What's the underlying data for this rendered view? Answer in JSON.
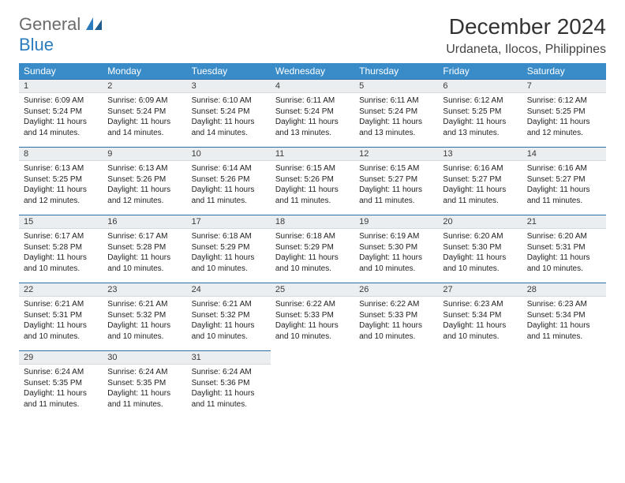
{
  "logo": {
    "word1": "General",
    "word2": "Blue"
  },
  "title": "December 2024",
  "subtitle": "Urdaneta, Ilocos, Philippines",
  "colors": {
    "header_bg": "#3a8cc9",
    "header_fg": "#ffffff",
    "daynum_bg": "#ebeef0",
    "daynum_border_top": "#2a6fa5",
    "logo_gray": "#6b6b6b",
    "logo_blue": "#2b7bbf",
    "page_bg": "#ffffff"
  },
  "weekdays": [
    "Sunday",
    "Monday",
    "Tuesday",
    "Wednesday",
    "Thursday",
    "Friday",
    "Saturday"
  ],
  "grid": {
    "rows": 5,
    "cols": 7
  },
  "days": [
    {
      "n": 1,
      "sunrise": "6:09 AM",
      "sunset": "5:24 PM",
      "daylight": "11 hours and 14 minutes."
    },
    {
      "n": 2,
      "sunrise": "6:09 AM",
      "sunset": "5:24 PM",
      "daylight": "11 hours and 14 minutes."
    },
    {
      "n": 3,
      "sunrise": "6:10 AM",
      "sunset": "5:24 PM",
      "daylight": "11 hours and 14 minutes."
    },
    {
      "n": 4,
      "sunrise": "6:11 AM",
      "sunset": "5:24 PM",
      "daylight": "11 hours and 13 minutes."
    },
    {
      "n": 5,
      "sunrise": "6:11 AM",
      "sunset": "5:24 PM",
      "daylight": "11 hours and 13 minutes."
    },
    {
      "n": 6,
      "sunrise": "6:12 AM",
      "sunset": "5:25 PM",
      "daylight": "11 hours and 13 minutes."
    },
    {
      "n": 7,
      "sunrise": "6:12 AM",
      "sunset": "5:25 PM",
      "daylight": "11 hours and 12 minutes."
    },
    {
      "n": 8,
      "sunrise": "6:13 AM",
      "sunset": "5:25 PM",
      "daylight": "11 hours and 12 minutes."
    },
    {
      "n": 9,
      "sunrise": "6:13 AM",
      "sunset": "5:26 PM",
      "daylight": "11 hours and 12 minutes."
    },
    {
      "n": 10,
      "sunrise": "6:14 AM",
      "sunset": "5:26 PM",
      "daylight": "11 hours and 11 minutes."
    },
    {
      "n": 11,
      "sunrise": "6:15 AM",
      "sunset": "5:26 PM",
      "daylight": "11 hours and 11 minutes."
    },
    {
      "n": 12,
      "sunrise": "6:15 AM",
      "sunset": "5:27 PM",
      "daylight": "11 hours and 11 minutes."
    },
    {
      "n": 13,
      "sunrise": "6:16 AM",
      "sunset": "5:27 PM",
      "daylight": "11 hours and 11 minutes."
    },
    {
      "n": 14,
      "sunrise": "6:16 AM",
      "sunset": "5:27 PM",
      "daylight": "11 hours and 11 minutes."
    },
    {
      "n": 15,
      "sunrise": "6:17 AM",
      "sunset": "5:28 PM",
      "daylight": "11 hours and 10 minutes."
    },
    {
      "n": 16,
      "sunrise": "6:17 AM",
      "sunset": "5:28 PM",
      "daylight": "11 hours and 10 minutes."
    },
    {
      "n": 17,
      "sunrise": "6:18 AM",
      "sunset": "5:29 PM",
      "daylight": "11 hours and 10 minutes."
    },
    {
      "n": 18,
      "sunrise": "6:18 AM",
      "sunset": "5:29 PM",
      "daylight": "11 hours and 10 minutes."
    },
    {
      "n": 19,
      "sunrise": "6:19 AM",
      "sunset": "5:30 PM",
      "daylight": "11 hours and 10 minutes."
    },
    {
      "n": 20,
      "sunrise": "6:20 AM",
      "sunset": "5:30 PM",
      "daylight": "11 hours and 10 minutes."
    },
    {
      "n": 21,
      "sunrise": "6:20 AM",
      "sunset": "5:31 PM",
      "daylight": "11 hours and 10 minutes."
    },
    {
      "n": 22,
      "sunrise": "6:21 AM",
      "sunset": "5:31 PM",
      "daylight": "11 hours and 10 minutes."
    },
    {
      "n": 23,
      "sunrise": "6:21 AM",
      "sunset": "5:32 PM",
      "daylight": "11 hours and 10 minutes."
    },
    {
      "n": 24,
      "sunrise": "6:21 AM",
      "sunset": "5:32 PM",
      "daylight": "11 hours and 10 minutes."
    },
    {
      "n": 25,
      "sunrise": "6:22 AM",
      "sunset": "5:33 PM",
      "daylight": "11 hours and 10 minutes."
    },
    {
      "n": 26,
      "sunrise": "6:22 AM",
      "sunset": "5:33 PM",
      "daylight": "11 hours and 10 minutes."
    },
    {
      "n": 27,
      "sunrise": "6:23 AM",
      "sunset": "5:34 PM",
      "daylight": "11 hours and 10 minutes."
    },
    {
      "n": 28,
      "sunrise": "6:23 AM",
      "sunset": "5:34 PM",
      "daylight": "11 hours and 11 minutes."
    },
    {
      "n": 29,
      "sunrise": "6:24 AM",
      "sunset": "5:35 PM",
      "daylight": "11 hours and 11 minutes."
    },
    {
      "n": 30,
      "sunrise": "6:24 AM",
      "sunset": "5:35 PM",
      "daylight": "11 hours and 11 minutes."
    },
    {
      "n": 31,
      "sunrise": "6:24 AM",
      "sunset": "5:36 PM",
      "daylight": "11 hours and 11 minutes."
    }
  ],
  "labels": {
    "sunrise": "Sunrise:",
    "sunset": "Sunset:",
    "daylight": "Daylight:"
  }
}
